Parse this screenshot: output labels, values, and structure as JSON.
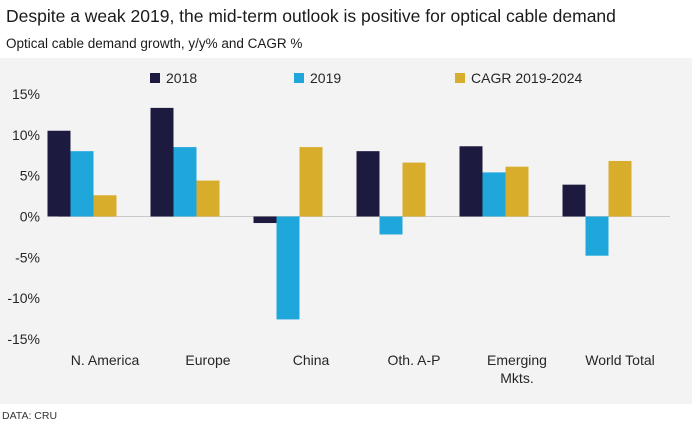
{
  "title": "Despite a weak 2019, the mid-term outlook is positive for optical cable demand",
  "subtitle": "Optical cable demand growth, y/y% and CAGR %",
  "source": "DATA: CRU",
  "chart_data": {
    "type": "bar",
    "categories": [
      [
        "N. America"
      ],
      [
        "Europe"
      ],
      [
        "China"
      ],
      [
        "Oth. A-P"
      ],
      [
        "Emerging",
        "Mkts."
      ],
      [
        "World Total"
      ]
    ],
    "series": [
      {
        "name": "2018",
        "color": "#1c1a3f",
        "values": [
          10.5,
          13.3,
          -0.8,
          8.0,
          8.6,
          3.9
        ]
      },
      {
        "name": "2019",
        "color": "#1fa7dc",
        "values": [
          8.0,
          8.5,
          -12.6,
          -2.2,
          5.4,
          -4.8
        ]
      },
      {
        "name": "CAGR 2019-2024",
        "color": "#d8ad2c",
        "values": [
          2.6,
          4.4,
          8.5,
          6.6,
          6.1,
          6.8
        ]
      }
    ],
    "yticks": [
      15,
      10,
      5,
      0,
      -5,
      -10,
      -15
    ],
    "ytick_labels": [
      "15%",
      "10%",
      "5%",
      "0%",
      "-5%",
      "-10%",
      "-15%"
    ],
    "ylim": [
      -15,
      15
    ],
    "grid": false,
    "legend_position": "top"
  }
}
